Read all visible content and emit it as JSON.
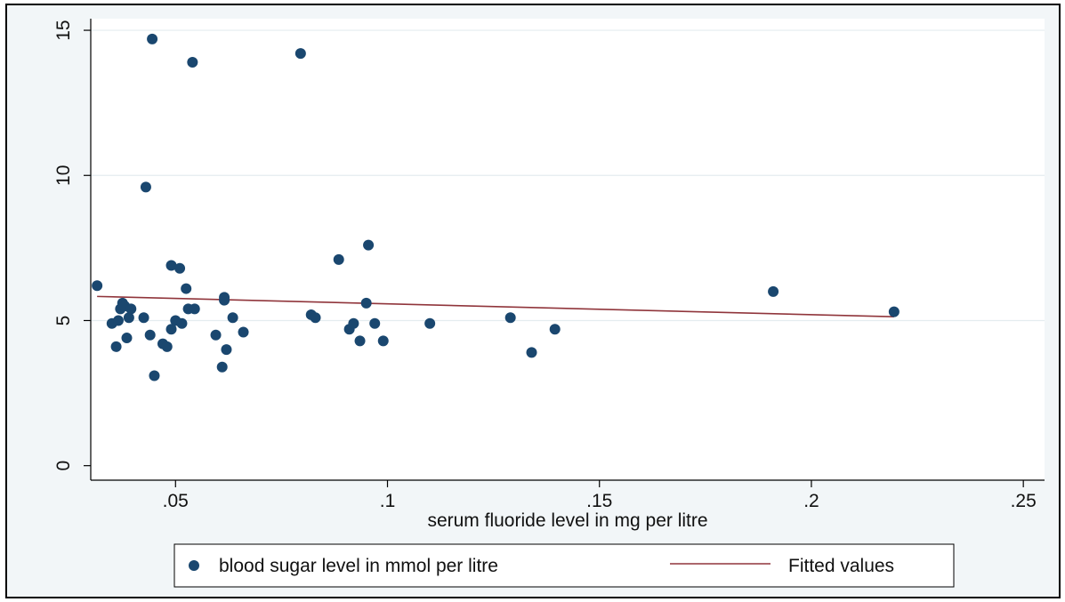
{
  "chart_data": {
    "type": "scatter",
    "xlabel": "serum fluoride level in mg per litre",
    "ylabel": "",
    "xlim": [
      0.03,
      0.255
    ],
    "ylim": [
      -0.5,
      15.4
    ],
    "x_ticks": [
      0.05,
      0.1,
      0.15,
      0.2,
      0.25
    ],
    "x_tick_labels": [
      ".05",
      ".1",
      ".15",
      ".2",
      ".25"
    ],
    "y_ticks": [
      0,
      5,
      10,
      15
    ],
    "y_tick_labels": [
      "0",
      "5",
      "10",
      "15"
    ],
    "grid": "horizontal",
    "legend_position": "bottom",
    "series": [
      {
        "name": "blood sugar level in mmol per litre",
        "kind": "scatter",
        "color": "#1a476f",
        "points": [
          [
            0.0315,
            6.2
          ],
          [
            0.035,
            4.9
          ],
          [
            0.036,
            4.1
          ],
          [
            0.0365,
            5.0
          ],
          [
            0.037,
            5.4
          ],
          [
            0.0375,
            5.6
          ],
          [
            0.038,
            5.5
          ],
          [
            0.0385,
            4.4
          ],
          [
            0.039,
            5.1
          ],
          [
            0.0395,
            5.4
          ],
          [
            0.0425,
            5.1
          ],
          [
            0.043,
            9.6
          ],
          [
            0.044,
            4.5
          ],
          [
            0.0445,
            14.7
          ],
          [
            0.045,
            3.1
          ],
          [
            0.047,
            4.2
          ],
          [
            0.048,
            4.1
          ],
          [
            0.049,
            4.7
          ],
          [
            0.049,
            6.9
          ],
          [
            0.05,
            5.0
          ],
          [
            0.051,
            6.8
          ],
          [
            0.0515,
            4.9
          ],
          [
            0.0525,
            6.1
          ],
          [
            0.053,
            5.4
          ],
          [
            0.054,
            13.9
          ],
          [
            0.0545,
            5.4
          ],
          [
            0.0595,
            4.5
          ],
          [
            0.061,
            3.4
          ],
          [
            0.0615,
            5.7
          ],
          [
            0.0615,
            5.8
          ],
          [
            0.062,
            4.0
          ],
          [
            0.0635,
            5.1
          ],
          [
            0.066,
            4.6
          ],
          [
            0.0795,
            14.2
          ],
          [
            0.082,
            5.2
          ],
          [
            0.083,
            5.1
          ],
          [
            0.0885,
            7.1
          ],
          [
            0.091,
            4.7
          ],
          [
            0.092,
            4.9
          ],
          [
            0.0935,
            4.3
          ],
          [
            0.095,
            5.6
          ],
          [
            0.0955,
            7.6
          ],
          [
            0.097,
            4.9
          ],
          [
            0.099,
            4.3
          ],
          [
            0.11,
            4.9
          ],
          [
            0.129,
            5.1
          ],
          [
            0.134,
            3.9
          ],
          [
            0.1395,
            4.7
          ],
          [
            0.191,
            6.0
          ],
          [
            0.2195,
            5.3
          ]
        ]
      },
      {
        "name": "Fitted values",
        "kind": "line",
        "color": "#90353b",
        "x": [
          0.0315,
          0.2195
        ],
        "y": [
          5.83,
          5.13
        ]
      }
    ]
  }
}
